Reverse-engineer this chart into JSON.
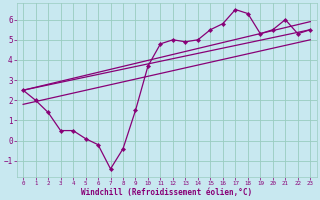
{
  "xlabel": "Windchill (Refroidissement éolien,°C)",
  "bg_color": "#c8e8f0",
  "grid_color": "#99ccc0",
  "line_color": "#880077",
  "ylim": [
    -1.8,
    6.8
  ],
  "xlim": [
    -0.5,
    23.5
  ],
  "yticks": [
    -1,
    0,
    1,
    2,
    3,
    4,
    5,
    6
  ],
  "xticks": [
    0,
    1,
    2,
    3,
    4,
    5,
    6,
    7,
    8,
    9,
    10,
    11,
    12,
    13,
    14,
    15,
    16,
    17,
    18,
    19,
    20,
    21,
    22,
    23
  ],
  "main_x": [
    0,
    1,
    2,
    3,
    4,
    5,
    6,
    7,
    8,
    9,
    10,
    11,
    12,
    13,
    14,
    15,
    16,
    17,
    18,
    19,
    20,
    21,
    22,
    23
  ],
  "main_y": [
    2.5,
    2.0,
    1.4,
    0.5,
    0.5,
    0.1,
    -0.2,
    -1.4,
    -0.4,
    1.5,
    3.7,
    4.8,
    5.0,
    4.9,
    5.0,
    5.5,
    5.8,
    6.5,
    6.3,
    5.3,
    5.5,
    6.0,
    5.3,
    5.5
  ],
  "trend1_x": [
    0,
    23
  ],
  "trend1_y": [
    2.5,
    5.5
  ],
  "trend2_x": [
    0,
    23
  ],
  "trend2_y": [
    1.8,
    5.0
  ],
  "trend3_x": [
    0,
    23
  ],
  "trend3_y": [
    2.5,
    5.9
  ]
}
